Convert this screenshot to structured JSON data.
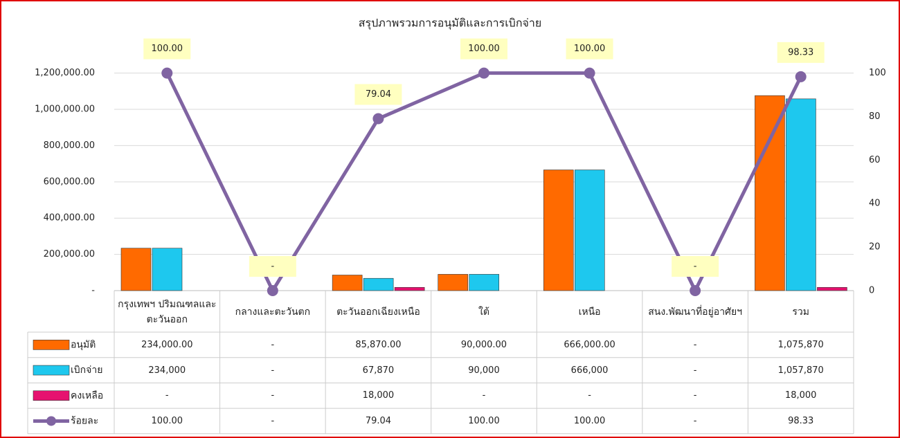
{
  "chart_data": {
    "type": "bar",
    "title": "สรุปภาพรวมการอนุมัติและการเบิกจ่าย",
    "categories": [
      "กรุงเทพฯ ปริมณฑลและตะวันออก",
      "กลางและตะวันตก",
      "ตะวันออกเฉียงเหนือ",
      "ใต้",
      "เหนือ",
      "สนง.พัฒนาที่อยู่อาศัยฯ",
      "รวม"
    ],
    "series": [
      {
        "name": "อนุมัติ",
        "type": "bar",
        "color": "#ff6a00",
        "values": [
          234000,
          0,
          85870,
          90000,
          666000,
          0,
          1075870
        ],
        "value_labels": [
          "234,000.00",
          "-",
          "85,870.00",
          "90,000.00",
          "666,000.00",
          "-",
          "1,075,870"
        ]
      },
      {
        "name": "เบิกจ่าย",
        "type": "bar",
        "color": "#1ec8ee",
        "values": [
          234000,
          0,
          67870,
          90000,
          666000,
          0,
          1057870
        ],
        "value_labels": [
          "234,000",
          "-",
          "67,870",
          "90,000",
          "666,000",
          "-",
          "1,057,870"
        ]
      },
      {
        "name": "คงเหลือ",
        "type": "bar",
        "color": "#e6126f",
        "values": [
          0,
          0,
          18000,
          0,
          0,
          0,
          18000
        ],
        "value_labels": [
          "-",
          "-",
          "18,000",
          "-",
          "-",
          "-",
          "18,000"
        ]
      },
      {
        "name": "ร้อยละ",
        "type": "line",
        "axis": "y2",
        "color": "#8064a2",
        "values": [
          100,
          0,
          79.04,
          100,
          100,
          0,
          98.33
        ],
        "value_labels": [
          "100.00",
          "-",
          "79.04",
          "100.00",
          "100.00",
          "-",
          "98.33"
        ]
      }
    ],
    "ylim": [
      0,
      1420000
    ],
    "yticks": [
      {
        "value": 0,
        "label": "-"
      },
      {
        "value": 200000,
        "label": "200,000.00"
      },
      {
        "value": 400000,
        "label": "400,000.00"
      },
      {
        "value": 600000,
        "label": "600,000.00"
      },
      {
        "value": 800000,
        "label": "800,000.00"
      },
      {
        "value": 1000000,
        "label": "1,000,000.00"
      },
      {
        "value": 1200000,
        "label": "1,200,000.00"
      }
    ],
    "y2lim": [
      0,
      118.33
    ],
    "y2ticks": [
      0,
      20,
      40,
      60,
      80,
      100
    ],
    "grid": true
  }
}
